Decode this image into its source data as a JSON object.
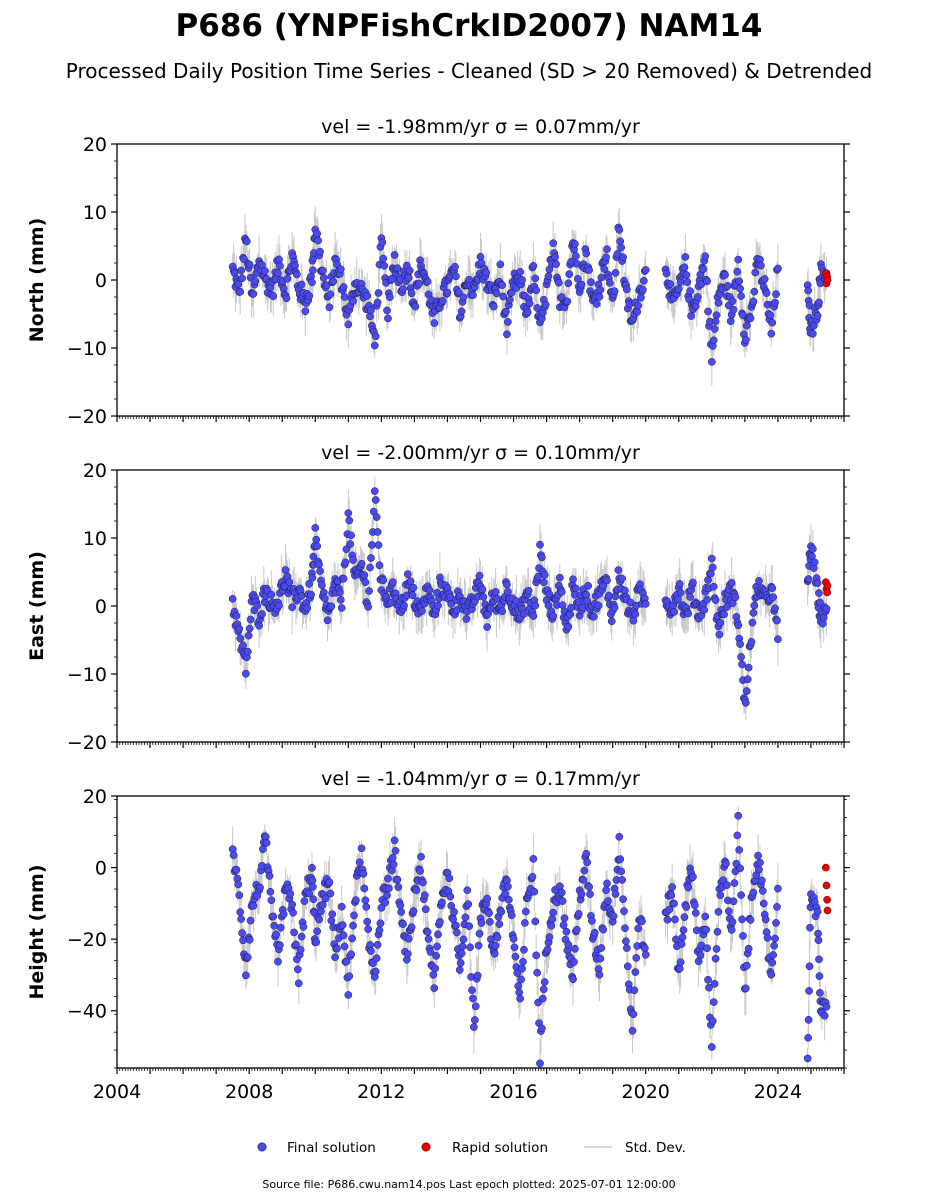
{
  "title": "P686 (YNPFishCrkID2007) NAM14",
  "subtitle": "Processed Daily Position Time Series - Cleaned (SD > 20 Removed) & Detrended",
  "footer": "Source file: P686.cwu.nam14.pos  Last epoch plotted: 2025-07-01 12:00:00",
  "legend": [
    {
      "label": "Final solution",
      "color": "#4a4af0",
      "marker": "circle"
    },
    {
      "label": "Rapid solution",
      "color": "#ee0000",
      "marker": "circle"
    },
    {
      "label": "Std. Dev.",
      "color": "#cccccc",
      "marker": "line"
    }
  ],
  "colors": {
    "final": "#4a4af0",
    "rapid": "#ee0000",
    "errbar": "#c8c8c8",
    "edge": "#1a1a3a"
  },
  "chart_data": [
    {
      "type": "scatter",
      "title": "vel = -1.98mm/yr   σ = 0.07mm/yr",
      "ylabel": "North (mm)",
      "xlim": [
        2004.0,
        2026.0
      ],
      "ylim": [
        -20,
        20
      ],
      "yticks": [
        -20,
        -10,
        0,
        10,
        20
      ],
      "ytick_labels": [
        "−20",
        "−10",
        "0",
        "10",
        "20"
      ],
      "grid": false,
      "series": [
        {
          "name": "Final solution",
          "x": [
            2007.5,
            2007.7,
            2007.9,
            2008.1,
            2008.3,
            2008.5,
            2008.7,
            2008.9,
            2009.1,
            2009.3,
            2009.5,
            2009.7,
            2009.9,
            2010.0,
            2010.2,
            2010.4,
            2010.6,
            2010.8,
            2011.0,
            2011.2,
            2011.4,
            2011.6,
            2011.8,
            2012.0,
            2012.2,
            2012.4,
            2012.6,
            2012.8,
            2013.0,
            2013.2,
            2013.4,
            2013.6,
            2013.8,
            2014.0,
            2014.2,
            2014.4,
            2014.6,
            2014.8,
            2015.0,
            2015.2,
            2015.4,
            2015.6,
            2015.8,
            2016.0,
            2016.2,
            2016.4,
            2016.6,
            2016.8,
            2017.0,
            2017.2,
            2017.4,
            2017.6,
            2017.8,
            2018.0,
            2018.2,
            2018.4,
            2018.6,
            2018.8,
            2019.0,
            2019.2,
            2019.4,
            2019.6,
            2019.8,
            2020.0,
            2020.6,
            2020.8,
            2021.0,
            2021.2,
            2021.4,
            2021.6,
            2021.8,
            2022.0,
            2022.2,
            2022.4,
            2022.6,
            2022.8,
            2023.0,
            2023.2,
            2023.4,
            2023.6,
            2023.8,
            2024.0,
            2024.9,
            2025.0,
            2025.2,
            2025.3
          ],
          "y": [
            1.5,
            -2.0,
            6.0,
            -3.0,
            3.0,
            0.0,
            -1.5,
            2.5,
            -2.0,
            3.5,
            -1.0,
            -3.5,
            0.5,
            8.0,
            1.5,
            -3.5,
            2.5,
            0.0,
            -6.0,
            -0.5,
            -1.5,
            -3.5,
            -9.0,
            5.5,
            -4.5,
            3.0,
            -1.0,
            2.0,
            -3.5,
            2.5,
            -1.0,
            -6.0,
            -2.5,
            -1.0,
            1.5,
            -5.0,
            0.5,
            -2.0,
            2.5,
            -0.5,
            -3.0,
            1.0,
            -7.0,
            -0.5,
            0.0,
            -5.0,
            1.5,
            -7.5,
            -1.5,
            4.0,
            -2.5,
            -3.0,
            6.0,
            -0.5,
            4.0,
            -3.5,
            -1.0,
            4.5,
            -4.0,
            8.0,
            -2.0,
            -6.5,
            -2.0,
            1.0,
            2.5,
            -3.5,
            -1.5,
            2.0,
            -5.0,
            -1.0,
            3.0,
            -11.5,
            -2.5,
            0.5,
            -5.5,
            2.5,
            -8.0,
            -4.5,
            3.0,
            -1.0,
            -7.5,
            1.5,
            -2.0,
            -7.5,
            -4.0,
            1.0
          ]
        },
        {
          "name": "Rapid solution",
          "x": [
            2025.45,
            2025.47,
            2025.49,
            2025.5
          ],
          "y": [
            1.0,
            -0.5,
            0.5,
            0.0
          ]
        }
      ]
    },
    {
      "type": "scatter",
      "title": "vel = -2.00mm/yr   σ = 0.10mm/yr",
      "ylabel": "East (mm)",
      "xlim": [
        2004.0,
        2026.0
      ],
      "ylim": [
        -20,
        20
      ],
      "yticks": [
        -20,
        -10,
        0,
        10,
        20
      ],
      "ytick_labels": [
        "−20",
        "−10",
        "0",
        "10",
        "20"
      ],
      "grid": false,
      "series": [
        {
          "name": "Final solution",
          "x": [
            2007.5,
            2007.7,
            2007.9,
            2008.1,
            2008.3,
            2008.5,
            2008.7,
            2008.9,
            2009.1,
            2009.3,
            2009.5,
            2009.7,
            2009.9,
            2010.0,
            2010.2,
            2010.4,
            2010.6,
            2010.8,
            2011.0,
            2011.2,
            2011.4,
            2011.6,
            2011.8,
            2012.0,
            2012.2,
            2012.4,
            2012.6,
            2012.8,
            2013.0,
            2013.2,
            2013.4,
            2013.6,
            2013.8,
            2014.0,
            2014.2,
            2014.4,
            2014.6,
            2014.8,
            2015.0,
            2015.2,
            2015.4,
            2015.6,
            2015.8,
            2016.0,
            2016.2,
            2016.4,
            2016.6,
            2016.8,
            2017.0,
            2017.2,
            2017.4,
            2017.6,
            2017.8,
            2018.0,
            2018.2,
            2018.4,
            2018.6,
            2018.8,
            2019.0,
            2019.2,
            2019.4,
            2019.6,
            2019.8,
            2020.0,
            2020.6,
            2020.8,
            2021.0,
            2021.2,
            2021.4,
            2021.6,
            2021.8,
            2022.0,
            2022.2,
            2022.4,
            2022.6,
            2022.8,
            2023.0,
            2023.2,
            2023.4,
            2023.6,
            2023.8,
            2024.0,
            2024.9,
            2025.0,
            2025.2,
            2025.3
          ],
          "y": [
            0.5,
            -4.5,
            -9.0,
            1.0,
            -1.5,
            2.5,
            0.0,
            1.0,
            4.5,
            0.5,
            2.5,
            -0.5,
            3.5,
            10.0,
            2.0,
            -1.5,
            3.0,
            1.0,
            13.0,
            3.5,
            6.0,
            0.5,
            16.0,
            3.0,
            1.0,
            2.5,
            -0.5,
            3.5,
            1.0,
            -1.0,
            2.5,
            -1.5,
            3.5,
            1.5,
            -0.5,
            2.0,
            -1.5,
            1.0,
            3.5,
            -2.0,
            1.5,
            -0.5,
            3.0,
            0.5,
            -2.0,
            2.0,
            -1.5,
            8.0,
            1.5,
            -1.0,
            3.5,
            -3.5,
            2.5,
            0.0,
            2.5,
            -1.0,
            2.0,
            3.5,
            -1.5,
            5.0,
            0.5,
            -1.5,
            2.0,
            0.5,
            1.5,
            -0.5,
            3.0,
            -1.5,
            2.5,
            -1.0,
            1.0,
            6.0,
            -3.5,
            0.5,
            2.5,
            -2.0,
            -15.0,
            -4.0,
            3.5,
            0.5,
            2.5,
            -4.5,
            3.0,
            9.0,
            2.0,
            -1.5
          ]
        },
        {
          "name": "Rapid solution",
          "x": [
            2025.45,
            2025.47,
            2025.49,
            2025.5
          ],
          "y": [
            3.5,
            2.5,
            2.0,
            3.0
          ]
        }
      ]
    },
    {
      "type": "scatter",
      "title": "vel = -1.04mm/yr   σ = 0.17mm/yr",
      "ylabel": "Height (mm)",
      "xlim": [
        2004.0,
        2026.0
      ],
      "ylim": [
        -56,
        20
      ],
      "yticks": [
        -40,
        -20,
        0,
        20
      ],
      "ytick_labels": [
        "−40",
        "−20",
        "0",
        "20"
      ],
      "grid": false,
      "series": [
        {
          "name": "Final solution",
          "x": [
            2007.5,
            2007.7,
            2007.9,
            2008.1,
            2008.3,
            2008.5,
            2008.7,
            2008.9,
            2009.1,
            2009.3,
            2009.5,
            2009.7,
            2009.9,
            2010.0,
            2010.2,
            2010.4,
            2010.6,
            2010.8,
            2011.0,
            2011.2,
            2011.4,
            2011.6,
            2011.8,
            2012.0,
            2012.2,
            2012.4,
            2012.6,
            2012.8,
            2013.0,
            2013.2,
            2013.4,
            2013.6,
            2013.8,
            2014.0,
            2014.2,
            2014.4,
            2014.6,
            2014.8,
            2015.0,
            2015.2,
            2015.4,
            2015.6,
            2015.8,
            2016.0,
            2016.2,
            2016.4,
            2016.6,
            2016.8,
            2017.0,
            2017.2,
            2017.4,
            2017.6,
            2017.8,
            2018.0,
            2018.2,
            2018.4,
            2018.6,
            2018.8,
            2019.0,
            2019.2,
            2019.4,
            2019.6,
            2019.8,
            2020.0,
            2020.6,
            2020.8,
            2021.0,
            2021.2,
            2021.4,
            2021.6,
            2021.8,
            2022.0,
            2022.2,
            2022.4,
            2022.6,
            2022.8,
            2023.0,
            2023.2,
            2023.4,
            2023.6,
            2023.8,
            2024.0,
            2024.9,
            2025.0,
            2025.2,
            2025.3
          ],
          "y": [
            5.0,
            -8.0,
            -28.0,
            -10.0,
            -5.0,
            8.0,
            -15.0,
            -25.0,
            -5.0,
            -12.0,
            -30.0,
            -8.0,
            -2.0,
            -20.0,
            -10.0,
            -3.0,
            -25.0,
            -12.0,
            -35.0,
            -8.0,
            3.0,
            -20.0,
            -30.0,
            -10.0,
            -5.0,
            5.0,
            -15.0,
            -25.0,
            -8.0,
            2.0,
            -20.0,
            -32.0,
            -10.0,
            -2.0,
            -15.0,
            -28.0,
            -5.0,
            -45.0,
            -15.0,
            -8.0,
            -25.0,
            -12.0,
            -3.0,
            -20.0,
            -38.0,
            -10.0,
            0.0,
            -52.0,
            -22.0,
            -10.0,
            -5.0,
            -20.0,
            -30.0,
            -8.0,
            2.0,
            -18.0,
            -28.0,
            -5.0,
            -15.0,
            8.0,
            -20.0,
            -45.0,
            -12.0,
            -25.0,
            -15.0,
            -5.0,
            -30.0,
            -10.0,
            0.0,
            -25.0,
            -15.0,
            -50.0,
            -10.0,
            2.0,
            -20.0,
            12.0,
            -35.0,
            -10.0,
            5.0,
            -15.0,
            -30.0,
            -8.0,
            -54.0,
            -5.0,
            -15.0,
            -40.0
          ]
        },
        {
          "name": "Rapid solution",
          "x": [
            2025.45,
            2025.47,
            2025.49,
            2025.5
          ],
          "y": [
            0.0,
            -5.0,
            -9.0,
            -12.0
          ]
        }
      ]
    }
  ],
  "xticks": [
    2004,
    2008,
    2012,
    2016,
    2020,
    2024
  ],
  "xtick_labels": [
    "2004",
    "2008",
    "2012",
    "2016",
    "2020",
    "2024"
  ]
}
